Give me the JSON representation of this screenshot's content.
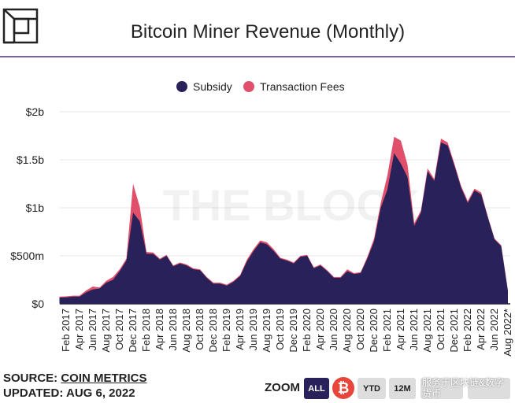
{
  "header": {
    "title": "Bitcoin Miner Revenue (Monthly)",
    "accent": "#7b5ea7"
  },
  "watermark": "THE BLOCK",
  "overlay_watermark": "服务于区块链&数字货币",
  "footer": {
    "source_label": "SOURCE:",
    "source_link": "COIN METRICS",
    "updated": "UPDATED: AUG 6, 2022",
    "zoom_label": "ZOOM",
    "buttons": [
      {
        "label": "ALL",
        "active": true
      },
      {
        "label": "YTD",
        "active": false
      },
      {
        "label": "12M",
        "active": false
      },
      {
        "label": "",
        "active": false
      }
    ]
  },
  "chart_data": {
    "type": "area",
    "stacked": true,
    "title": "Bitcoin Miner Revenue (Monthly)",
    "legend_position": "top",
    "grid": true,
    "ylim": [
      0,
      2000000000
    ],
    "y_tick_labels": [
      "$0",
      "$500m",
      "$1b",
      "$1.5b",
      "$2b"
    ],
    "x_range": [
      "2017-01",
      "2022-08"
    ],
    "x_tick_labels": [
      "Feb 2017",
      "Apr 2017",
      "Jun 2017",
      "Aug 2017",
      "Oct 2017",
      "Dec 2017",
      "Feb 2018",
      "Apr 2018",
      "Jun 2018",
      "Aug 2018",
      "Oct 2018",
      "Dec 2018",
      "Feb 2019",
      "Apr 2019",
      "Jun 2019",
      "Aug 2019",
      "Oct 2019",
      "Dec 2019",
      "Feb 2020",
      "Apr 2020",
      "Jun 2020",
      "Aug 2020",
      "Oct 2020",
      "Dec 2020",
      "Feb 2021",
      "Apr 2021",
      "Jun 2021",
      "Aug 2021",
      "Oct 2021",
      "Dec 2021",
      "Feb 2022",
      "Apr 2022",
      "Jun 2022",
      "Aug 2022*"
    ],
    "unit": "USD billions",
    "series": [
      {
        "name": "Subsidy",
        "color": "#28215a",
        "values": [
          0.065,
          0.068,
          0.075,
          0.075,
          0.12,
          0.15,
          0.16,
          0.22,
          0.25,
          0.34,
          0.45,
          0.95,
          0.86,
          0.52,
          0.52,
          0.46,
          0.5,
          0.39,
          0.42,
          0.4,
          0.36,
          0.35,
          0.27,
          0.21,
          0.21,
          0.19,
          0.23,
          0.29,
          0.44,
          0.55,
          0.64,
          0.62,
          0.55,
          0.47,
          0.45,
          0.42,
          0.49,
          0.5,
          0.37,
          0.4,
          0.34,
          0.27,
          0.27,
          0.34,
          0.31,
          0.32,
          0.47,
          0.65,
          1.0,
          1.19,
          1.57,
          1.46,
          1.32,
          0.81,
          0.95,
          1.38,
          1.28,
          1.68,
          1.65,
          1.44,
          1.21,
          1.05,
          1.18,
          1.14,
          0.9,
          0.67,
          0.6,
          0.13
        ]
      },
      {
        "name": "Transaction Fees",
        "color": "#e0506a",
        "values": [
          0.01,
          0.01,
          0.01,
          0.01,
          0.02,
          0.03,
          0.01,
          0.02,
          0.03,
          0.02,
          0.02,
          0.3,
          0.15,
          0.02,
          0.015,
          0.01,
          0.01,
          0.01,
          0.01,
          0.01,
          0.01,
          0.01,
          0.01,
          0.01,
          0.01,
          0.01,
          0.01,
          0.01,
          0.02,
          0.02,
          0.02,
          0.02,
          0.02,
          0.01,
          0.01,
          0.01,
          0.01,
          0.01,
          0.01,
          0.01,
          0.01,
          0.01,
          0.01,
          0.02,
          0.01,
          0.01,
          0.02,
          0.03,
          0.05,
          0.15,
          0.17,
          0.24,
          0.13,
          0.03,
          0.02,
          0.03,
          0.02,
          0.04,
          0.03,
          0.02,
          0.02,
          0.02,
          0.02,
          0.02,
          0.01,
          0.01,
          0.01,
          0.01
        ]
      }
    ]
  }
}
